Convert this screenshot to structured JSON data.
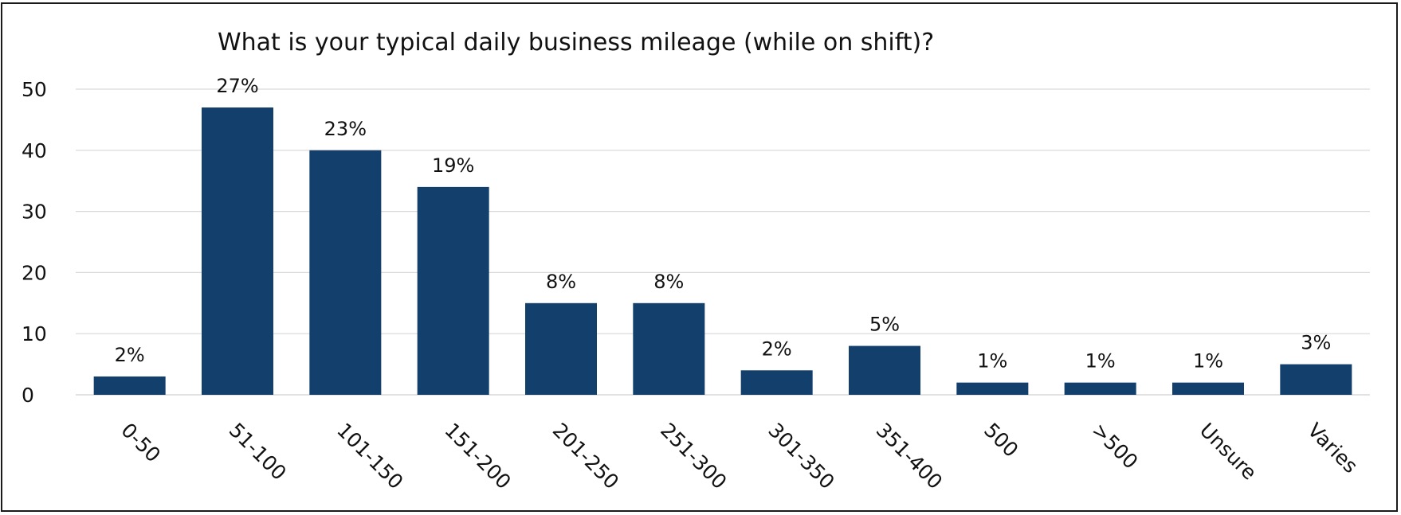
{
  "chart_data": {
    "type": "bar",
    "title": "What is your typical daily business mileage (while on shift)?",
    "xlabel": "",
    "ylabel": "",
    "categories": [
      "0-50",
      "51-100",
      "101-150",
      "151-200",
      "201-250",
      "251-300",
      "301-350",
      "351-400",
      "500",
      ">500",
      "Unsure",
      "Varies"
    ],
    "values": [
      3,
      47,
      40,
      34,
      15,
      15,
      4,
      8,
      2,
      2,
      2,
      5
    ],
    "data_labels": [
      "2%",
      "27%",
      "23%",
      "19%",
      "8%",
      "8%",
      "2%",
      "5%",
      "1%",
      "1%",
      "1%",
      "3%"
    ],
    "y_ticks": [
      "0",
      "10",
      "20",
      "30",
      "40",
      "50"
    ],
    "ylim": [
      0,
      50
    ],
    "grid": true,
    "legend": "none",
    "bar_color": "#123f6b",
    "grid_color": "#d9d9d9"
  }
}
